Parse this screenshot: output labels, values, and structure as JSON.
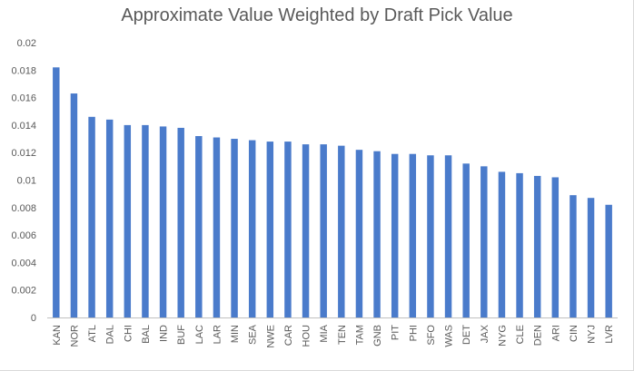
{
  "chart_data": {
    "type": "bar",
    "title": "Approximate Value Weighted by Draft Pick Value",
    "xlabel": "",
    "ylabel": "",
    "ylim": [
      0,
      0.02
    ],
    "yticks": [
      "0",
      "0.002",
      "0.004",
      "0.006",
      "0.008",
      "0.01",
      "0.012",
      "0.014",
      "0.016",
      "0.018",
      "0.02"
    ],
    "bar_color": "#4a7bcb",
    "grid": false,
    "categories": [
      "KAN",
      "NOR",
      "ATL",
      "DAL",
      "CHI",
      "BAL",
      "IND",
      "BUF",
      "LAC",
      "LAR",
      "MIN",
      "SEA",
      "NWE",
      "CAR",
      "HOU",
      "MIA",
      "TEN",
      "TAM",
      "GNB",
      "PIT",
      "PHI",
      "SFO",
      "WAS",
      "DET",
      "JAX",
      "NYG",
      "CLE",
      "DEN",
      "ARI",
      "CIN",
      "NYJ",
      "LVR"
    ],
    "values": [
      0.0182,
      0.0163,
      0.0146,
      0.0144,
      0.014,
      0.014,
      0.0139,
      0.0138,
      0.0132,
      0.0131,
      0.013,
      0.0129,
      0.0128,
      0.0128,
      0.0126,
      0.0126,
      0.0125,
      0.0122,
      0.0121,
      0.0119,
      0.0119,
      0.0118,
      0.0118,
      0.0112,
      0.011,
      0.0106,
      0.0105,
      0.0103,
      0.0102,
      0.0089,
      0.0087,
      0.0082
    ]
  }
}
